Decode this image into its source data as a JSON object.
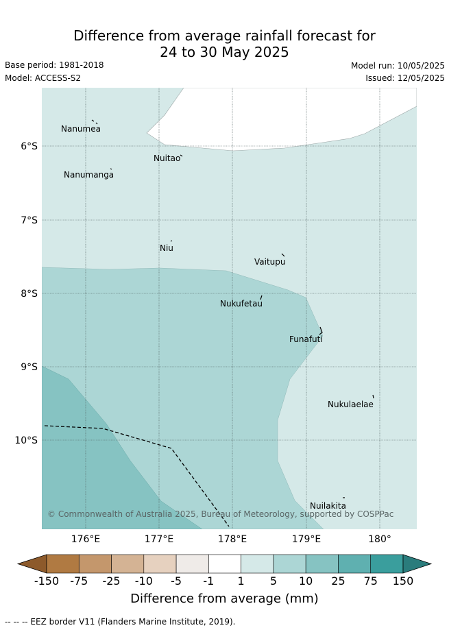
{
  "title": {
    "line1": "Difference from average rainfall forecast for",
    "line2": "24 to 30 May 2025"
  },
  "meta": {
    "base_period": "Base period: 1981-2018",
    "model": "Model: ACCESS-S2",
    "model_run": "Model run: 10/05/2025",
    "issued": "Issued: 12/05/2025"
  },
  "axes": {
    "lon_labels": [
      "176°E",
      "177°E",
      "178°E",
      "179°E",
      "180°"
    ],
    "lat_labels": [
      "6°S",
      "7°S",
      "8°S",
      "9°S",
      "10°S"
    ]
  },
  "places": [
    {
      "name": "Nanumea"
    },
    {
      "name": "Nuitao"
    },
    {
      "name": "Nanumanga"
    },
    {
      "name": "Niu"
    },
    {
      "name": "Vaitupu"
    },
    {
      "name": "Nukufetau"
    },
    {
      "name": "Funafuti"
    },
    {
      "name": "Nukulaelae"
    },
    {
      "name": "Nuilakita"
    }
  ],
  "attribution": "© Commonwealth of Australia 2025, Bureau of Meteorology, supported by COSPPac",
  "legend": {
    "title": "Difference from average (mm)",
    "ticks": [
      "-150",
      "-75",
      "-25",
      "-10",
      "-5",
      "-1",
      "1",
      "5",
      "10",
      "25",
      "75",
      "150"
    ],
    "colors": [
      "#8d5a2b",
      "#b07a42",
      "#c4976c",
      "#d4b394",
      "#e6d1bf",
      "#efebe8",
      "#ffffff",
      "#d5e9e8",
      "#acd6d5",
      "#86c3c2",
      "#5fb0b0",
      "#3a9e9d",
      "#2a7c7c"
    ]
  },
  "footnote": "--  --  -- EEZ border V11 (Flanders Marine Institute, 2019)."
}
